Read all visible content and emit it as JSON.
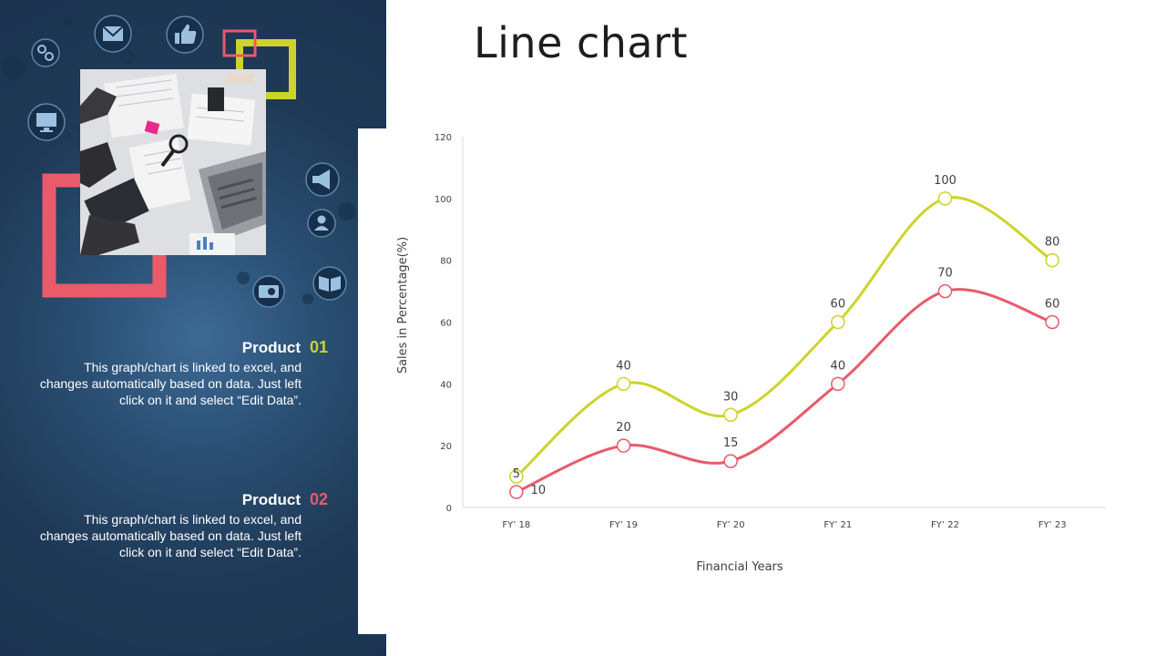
{
  "slide": {
    "title": "Line chart"
  },
  "colors": {
    "panel_bg": "#1f3a57",
    "accent_yellow": "#cdd32c",
    "accent_pink": "#e95a6a",
    "icon_fill": "#8fb6d8"
  },
  "left_panel": {
    "icons": [
      "mail-icon",
      "thumbs-up-icon",
      "gears-icon",
      "monitor-icon",
      "megaphone-icon",
      "person-icon",
      "radio-icon",
      "book-icon"
    ],
    "products": [
      {
        "title": "Product",
        "number": "01",
        "color": "#cdd32c",
        "description": "This graph/chart is linked to excel, and changes automatically based on data. Just left click on it and select “Edit Data”."
      },
      {
        "title": "Product",
        "number": "02",
        "color": "#e95a6a",
        "description": "This graph/chart is linked to excel, and changes automatically based on data. Just left click on it and select “Edit Data”."
      }
    ]
  },
  "chart_data": {
    "type": "line",
    "categories": [
      "FY’ 18",
      "FY’ 19",
      "FY’ 20",
      "FY’ 21",
      "FY’ 22",
      "FY’ 23"
    ],
    "series": [
      {
        "color": "#cdd32c",
        "values": [
          10,
          40,
          30,
          60,
          100,
          80
        ]
      },
      {
        "color": "#e95a6a",
        "values": [
          5,
          20,
          15,
          40,
          70,
          60
        ]
      }
    ],
    "xlabel": "Financial Years",
    "ylabel": "Sales in Percentage(%)",
    "ylim": [
      0,
      120
    ],
    "yticks": [
      0,
      20,
      40,
      60,
      80,
      100,
      120
    ],
    "grid": false,
    "smooth": true,
    "data_labels": true
  }
}
